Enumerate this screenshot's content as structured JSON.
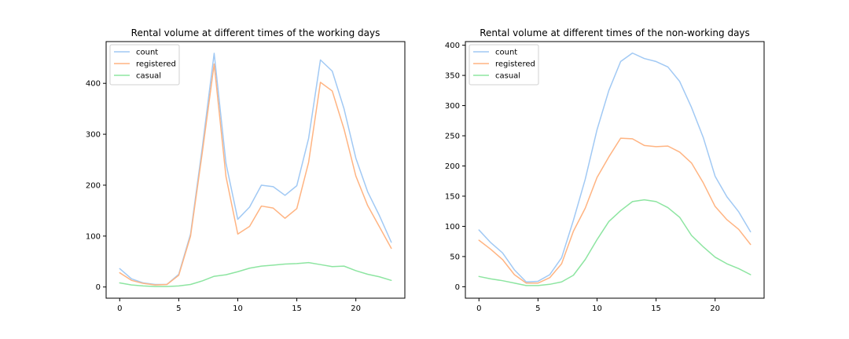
{
  "colors": {
    "count": "#a1c9f4",
    "registered": "#ffb482",
    "casual": "#8de5a1"
  },
  "chart_data": [
    {
      "type": "line",
      "title": "Rental volume at different times of the working days",
      "x": [
        0,
        1,
        2,
        3,
        4,
        5,
        6,
        7,
        8,
        9,
        10,
        11,
        12,
        13,
        14,
        15,
        16,
        17,
        18,
        19,
        20,
        21,
        22,
        23
      ],
      "xlim": [
        -1.15,
        24.15
      ],
      "ylim": [
        -22,
        482
      ],
      "xticks": [
        0,
        5,
        10,
        15,
        20
      ],
      "yticks": [
        0,
        100,
        200,
        300,
        400
      ],
      "legend_position": "top-left",
      "series": [
        {
          "name": "count",
          "color_key": "count",
          "values": [
            36,
            16,
            8,
            5,
            5,
            25,
            104,
            275,
            459,
            243,
            133,
            157,
            200,
            197,
            180,
            199,
            292,
            446,
            424,
            350,
            253,
            187,
            140,
            88
          ]
        },
        {
          "name": "registered",
          "color_key": "registered",
          "values": [
            28,
            13,
            7,
            4,
            5,
            23,
            100,
            265,
            438,
            217,
            104,
            119,
            159,
            155,
            135,
            154,
            245,
            402,
            385,
            310,
            218,
            160,
            118,
            76
          ]
        },
        {
          "name": "casual",
          "color_key": "casual",
          "values": [
            8,
            4,
            2,
            1,
            1,
            2,
            5,
            12,
            21,
            24,
            30,
            37,
            41,
            43,
            45,
            46,
            48,
            44,
            40,
            41,
            32,
            25,
            20,
            13
          ]
        }
      ]
    },
    {
      "type": "line",
      "title": "Rental volume at different times of the non-working days",
      "x": [
        0,
        1,
        2,
        3,
        4,
        5,
        6,
        7,
        8,
        9,
        10,
        11,
        12,
        13,
        14,
        15,
        16,
        17,
        18,
        19,
        20,
        21,
        22,
        23
      ],
      "xlim": [
        -1.15,
        24.15
      ],
      "ylim": [
        -19,
        406
      ],
      "xticks": [
        0,
        5,
        10,
        15,
        20
      ],
      "yticks": [
        0,
        50,
        100,
        150,
        200,
        250,
        300,
        350,
        400
      ],
      "legend_position": "top-left",
      "series": [
        {
          "name": "count",
          "color_key": "count",
          "values": [
            94,
            73,
            56,
            28,
            8,
            9,
            20,
            48,
            110,
            178,
            260,
            325,
            373,
            387,
            378,
            373,
            364,
            340,
            297,
            247,
            183,
            149,
            124,
            91
          ]
        },
        {
          "name": "registered",
          "color_key": "registered",
          "values": [
            77,
            62,
            45,
            20,
            6,
            6,
            15,
            38,
            92,
            130,
            181,
            215,
            246,
            245,
            234,
            232,
            233,
            223,
            205,
            172,
            133,
            111,
            95,
            70
          ]
        },
        {
          "name": "casual",
          "color_key": "casual",
          "values": [
            17,
            13,
            10,
            6,
            2,
            2,
            4,
            8,
            19,
            45,
            78,
            108,
            126,
            141,
            144,
            141,
            131,
            115,
            85,
            66,
            49,
            38,
            30,
            20
          ]
        }
      ]
    }
  ]
}
